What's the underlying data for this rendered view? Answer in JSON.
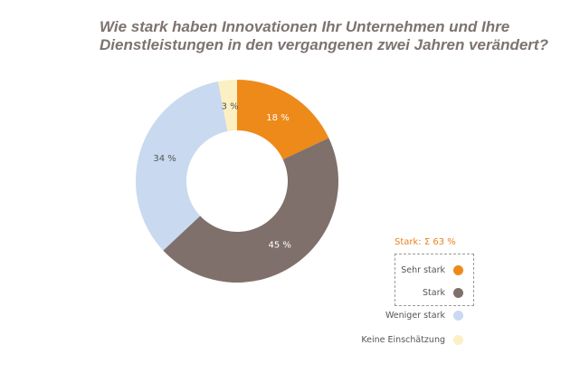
{
  "title": {
    "line1": "Wie stark haben Innovationen Ihr Unternehmen und Ihre",
    "line2": "Dienstleistungen in den vergangenen zwei Jahren verändert?"
  },
  "chart_data": {
    "type": "pie",
    "title": "Wie stark haben Innovationen Ihr Unternehmen und Ihre Dienstleistungen in den vergangenen zwei Jahren verändert?",
    "donut": true,
    "categories": [
      "Sehr stark",
      "Stark",
      "Weniger stark",
      "Keine Einschätzung"
    ],
    "values": [
      18,
      45,
      34,
      3
    ],
    "value_labels": [
      "18 %",
      "45 %",
      "34 %",
      "3 %"
    ],
    "colors": [
      "#ed8a1a",
      "#7f706b",
      "#c9d9f0",
      "#fcf0c2"
    ],
    "label_colors": [
      "#ffffff",
      "#ffffff",
      "#555555",
      "#555555"
    ],
    "legend": "bottom-right",
    "legend_group": {
      "label": "Stark: Σ 63 %",
      "members": [
        "Sehr stark",
        "Stark"
      ],
      "color": "#e8831f"
    }
  }
}
